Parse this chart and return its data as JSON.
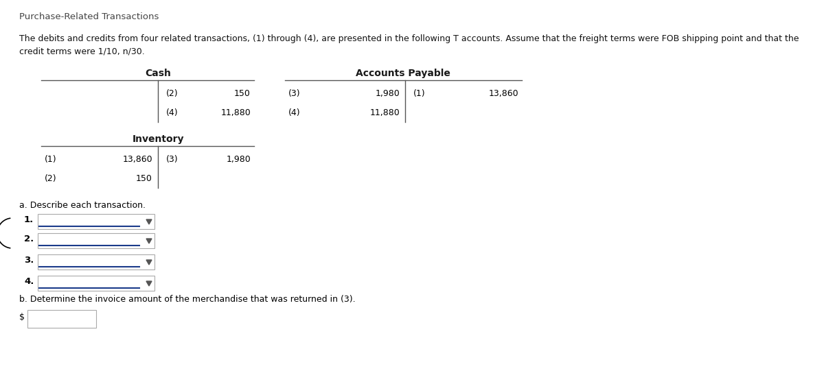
{
  "title": "Purchase-Related Transactions",
  "desc1": "The debits and credits from four related transactions, (1) through (4), are presented in the following T accounts. Assume that the freight terms were FOB shipping point and that the",
  "desc2": "credit terms were 1/10, n/30.",
  "cash_header": "Cash",
  "cash_credits": [
    {
      "label": "(2)",
      "value": "150"
    },
    {
      "label": "(4)",
      "value": "11,880"
    }
  ],
  "inventory_header": "Inventory",
  "inventory_debits": [
    {
      "label": "(1)",
      "value": "13,860"
    },
    {
      "label": "(2)",
      "value": "150"
    }
  ],
  "inventory_credits": [
    {
      "label": "(3)",
      "value": "1,980"
    }
  ],
  "ap_header": "Accounts Payable",
  "ap_debits": [
    {
      "label": "(3)",
      "value": "1,980"
    },
    {
      "label": "(4)",
      "value": "11,880"
    }
  ],
  "ap_credits": [
    {
      "label": "(1)",
      "value": "13,860"
    }
  ],
  "part_a_label": "a. Describe each transaction.",
  "dropdown_labels": [
    "1.",
    "2.",
    "3.",
    "4."
  ],
  "part_b_label": "b. Determine the invoice amount of the merchandise that was returned in (3).",
  "dollar_sign": "$",
  "bg_color": "#ffffff",
  "text_color": "#000000",
  "bold_text_color": "#1a1a1a",
  "label_color": "#4a4a4a",
  "line_color": "#555555",
  "dropdown_border": "#aaaaaa",
  "dropdown_fill": "#ffffff",
  "dropdown_underline": "#1a3a8a",
  "arrow_color": "#555555",
  "title_color": "#444444",
  "desc_color": "#111111"
}
